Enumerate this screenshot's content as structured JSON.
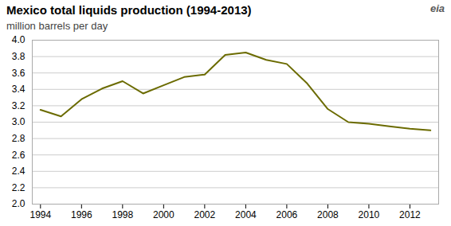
{
  "chart_data": {
    "type": "line",
    "title": "Mexico total liquids production (1994-2013)",
    "subtitle": "million barrels  per day",
    "annotations": [
      "eia"
    ],
    "x": [
      1994,
      1995,
      1996,
      1997,
      1998,
      1999,
      2000,
      2001,
      2002,
      2003,
      2004,
      2005,
      2006,
      2007,
      2008,
      2009,
      2010,
      2011,
      2012,
      2013
    ],
    "values": [
      3.15,
      3.07,
      3.28,
      3.41,
      3.5,
      3.35,
      3.45,
      3.55,
      3.58,
      3.82,
      3.85,
      3.76,
      3.71,
      3.47,
      3.16,
      3.0,
      2.98,
      2.95,
      2.92,
      2.9
    ],
    "color": "#6b6b00",
    "xlim": [
      1993.6,
      2013.4
    ],
    "xticks": [
      1994,
      1996,
      1998,
      2000,
      2002,
      2004,
      2006,
      2008,
      2010,
      2012
    ],
    "ylim": [
      2.0,
      4.0
    ],
    "yticks": [
      {
        "value": 2.0,
        "label": "2.0"
      },
      2.2,
      2.4,
      2.6,
      2.8,
      {
        "value": 3.0,
        "label": "3.0"
      },
      3.2,
      3.4,
      3.6,
      3.8,
      {
        "value": 4.0,
        "label": "4.0"
      }
    ],
    "grid": true
  }
}
